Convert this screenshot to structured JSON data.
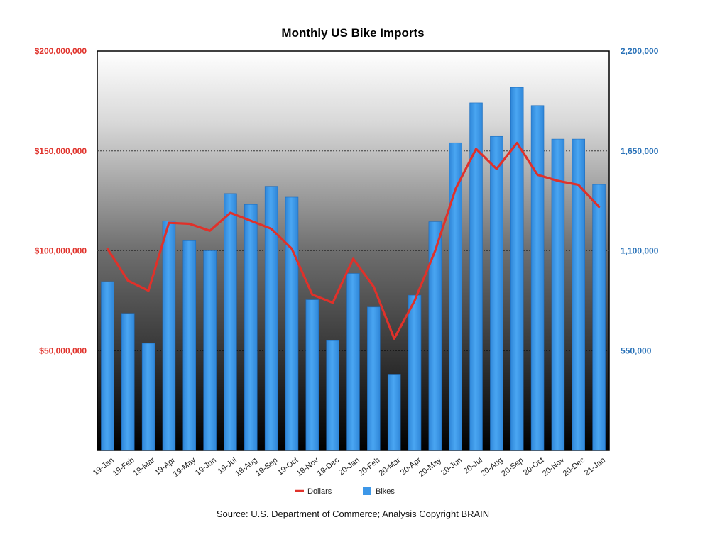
{
  "chart_data": {
    "type": "bar",
    "title": "Monthly US Bike Imports",
    "source": "Source: U.S. Department of Commerce; Analysis Copyright BRAIN",
    "categories": [
      "19-Jan",
      "19-Feb",
      "19-Mar",
      "19-Apr",
      "19-May",
      "19-Jun",
      "19-Jul",
      "19-Aug",
      "19-Sep",
      "19-Oct",
      "19-Nov",
      "19-Dec",
      "20-Jan",
      "20-Feb",
      "20-Mar",
      "20-Apr",
      "20-May",
      "20-Jun",
      "20-Jul",
      "20-Aug",
      "20-Sep",
      "20-Oct",
      "20-Nov",
      "20-Dec",
      "21-Jan"
    ],
    "left_axis": {
      "ylim": [
        0,
        200000000
      ],
      "ticks": [
        "$50,000,000",
        "$100,000,000",
        "$150,000,000",
        "$200,000,000"
      ],
      "tick_values": [
        50000000,
        100000000,
        150000000,
        200000000
      ],
      "color": "#e0312a"
    },
    "right_axis": {
      "ylim": [
        0,
        2200000
      ],
      "ticks": [
        "550,000",
        "1,100,000",
        "1,650,000",
        "2,200,000"
      ],
      "tick_values": [
        550000,
        1100000,
        1650000,
        2200000
      ],
      "color": "#2a72b8"
    },
    "grid": true,
    "legend_position": "bottom",
    "series": [
      {
        "name": "Dollars",
        "type": "line",
        "axis": "left",
        "color": "#e0312a",
        "values": [
          101000000,
          85000000,
          80000000,
          114000000,
          113500000,
          110000000,
          119000000,
          115000000,
          111000000,
          101000000,
          78000000,
          74000000,
          96000000,
          82000000,
          56000000,
          75000000,
          100000000,
          131000000,
          151000000,
          141000000,
          154000000,
          138000000,
          135000000,
          133000000,
          122000000
        ]
      },
      {
        "name": "Bikes",
        "type": "bar",
        "axis": "right",
        "color": "#3d97e8",
        "values": [
          930000,
          755000,
          590000,
          1265000,
          1155000,
          1100000,
          1415000,
          1355000,
          1455000,
          1395000,
          830000,
          605000,
          975000,
          790000,
          420000,
          855000,
          1260000,
          1695000,
          1915000,
          1730000,
          2000000,
          1900000,
          1715000,
          1715000,
          1465000
        ]
      }
    ]
  }
}
